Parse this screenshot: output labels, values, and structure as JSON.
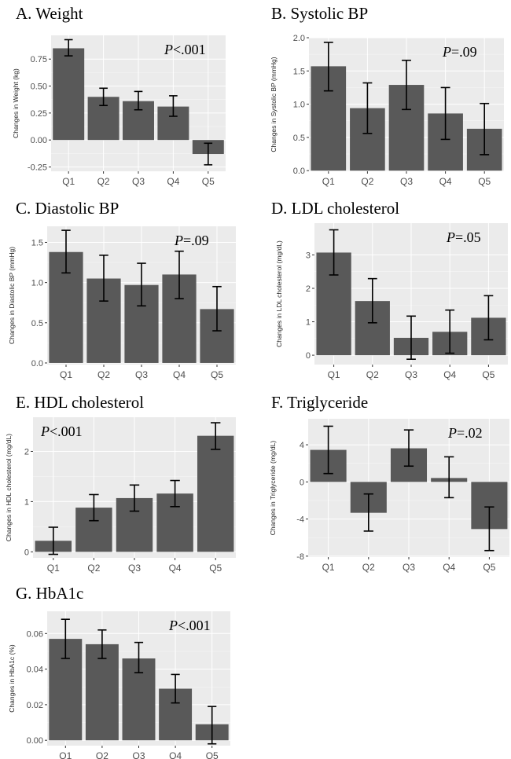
{
  "colors": {
    "bar": "#595959",
    "panel_bg": "#ebebeb",
    "grid": "#ffffff",
    "error_bar": "#000000"
  },
  "chart_data": [
    {
      "id": "A",
      "type": "bar",
      "title": "A. Weight",
      "ylabel": "Changes in Weight (kg)",
      "p_prefix": "P",
      "p_suffix": "<.001",
      "p_position": "top-right",
      "categories": [
        "Q1",
        "Q2",
        "Q3",
        "Q4",
        "Q5"
      ],
      "values": [
        0.85,
        0.4,
        0.36,
        0.31,
        -0.13
      ],
      "err_low": [
        0.78,
        0.32,
        0.28,
        0.22,
        -0.23
      ],
      "err_high": [
        0.93,
        0.48,
        0.45,
        0.41,
        -0.03
      ],
      "yticks": [
        -0.25,
        0.0,
        0.25,
        0.5,
        0.75
      ],
      "ytick_labels": [
        "-0.25",
        "0.00",
        "0.25",
        "0.50",
        "0.75"
      ],
      "ylim": [
        -0.29,
        0.97
      ]
    },
    {
      "id": "B",
      "type": "bar",
      "title": "B. Systolic BP",
      "ylabel": "Changes in Systolic BP (mmHg)",
      "p_prefix": "P",
      "p_suffix": "=.09",
      "p_position": "top-right",
      "categories": [
        "Q1",
        "Q2",
        "Q3",
        "Q4",
        "Q5"
      ],
      "values": [
        1.57,
        0.94,
        1.29,
        0.86,
        0.63
      ],
      "err_low": [
        1.2,
        0.56,
        0.92,
        0.47,
        0.24
      ],
      "err_high": [
        1.93,
        1.32,
        1.66,
        1.25,
        1.01
      ],
      "yticks": [
        0.0,
        0.5,
        1.0,
        1.5,
        2.0
      ],
      "ytick_labels": [
        "0.0",
        "0.5",
        "1.0",
        "1.5",
        "2.0"
      ],
      "ylim": [
        -0.01,
        2.0
      ]
    },
    {
      "id": "C",
      "type": "bar",
      "title": "C. Diastolic BP",
      "ylabel": "Changes in Diastolic BP (mmHg)",
      "p_prefix": "P",
      "p_suffix": "=.09",
      "p_position": "top-right",
      "categories": [
        "Q1",
        "Q2",
        "Q3",
        "Q4",
        "Q5"
      ],
      "values": [
        1.38,
        1.05,
        0.97,
        1.1,
        0.67
      ],
      "err_low": [
        1.12,
        0.77,
        0.71,
        0.8,
        0.4
      ],
      "err_high": [
        1.65,
        1.34,
        1.24,
        1.39,
        0.95
      ],
      "yticks": [
        0.0,
        0.5,
        1.0,
        1.5
      ],
      "ytick_labels": [
        "0.0",
        "0.5",
        "1.0",
        "1.5"
      ],
      "ylim": [
        -0.02,
        1.7
      ]
    },
    {
      "id": "D",
      "type": "bar",
      "title": "D. LDL cholesterol",
      "ylabel": "Changes in LDL cholesterol (mg/dL)",
      "p_prefix": "P",
      "p_suffix": "=.05",
      "p_position": "top-right",
      "categories": [
        "Q1",
        "Q2",
        "Q3",
        "Q4",
        "Q5"
      ],
      "values": [
        3.07,
        1.62,
        0.52,
        0.7,
        1.12
      ],
      "err_low": [
        2.4,
        0.97,
        -0.12,
        0.06,
        0.46
      ],
      "err_high": [
        3.75,
        2.29,
        1.17,
        1.35,
        1.78
      ],
      "yticks": [
        0,
        1,
        2,
        3
      ],
      "ytick_labels": [
        "0",
        "1",
        "2",
        "3"
      ],
      "ylim": [
        -0.28,
        3.95
      ]
    },
    {
      "id": "E",
      "type": "bar",
      "title": "E. HDL cholesterol",
      "ylabel": "Changes in HDL cholesterol (mg/dL)",
      "p_prefix": "P",
      "p_suffix": "<.001",
      "p_position": "top-left",
      "categories": [
        "Q1",
        "Q2",
        "Q3",
        "Q4",
        "Q5"
      ],
      "values": [
        0.22,
        0.88,
        1.07,
        1.16,
        2.31
      ],
      "err_low": [
        -0.05,
        0.62,
        0.81,
        0.9,
        2.04
      ],
      "err_high": [
        0.49,
        1.14,
        1.33,
        1.42,
        2.57
      ],
      "yticks": [
        0,
        1,
        2
      ],
      "ytick_labels": [
        "0",
        "1",
        "2"
      ],
      "ylim": [
        -0.12,
        2.68
      ]
    },
    {
      "id": "F",
      "type": "bar",
      "title": "F. Triglyceride",
      "ylabel": "Changes in Triglyceride (mg/dL)",
      "p_prefix": "P",
      "p_suffix": "=.02",
      "p_position": "top-right",
      "categories": [
        "Q1",
        "Q2",
        "Q3",
        "Q4",
        "Q5"
      ],
      "values": [
        3.45,
        -3.33,
        3.62,
        0.42,
        -5.08
      ],
      "err_low": [
        0.9,
        -5.3,
        1.7,
        -1.7,
        -7.4
      ],
      "err_high": [
        6.0,
        -1.3,
        5.6,
        2.7,
        -2.7
      ],
      "yticks": [
        -8,
        -4,
        0,
        4
      ],
      "ytick_labels": [
        "-8",
        "-4",
        "0",
        "4"
      ],
      "ylim": [
        -8.1,
        6.8
      ]
    },
    {
      "id": "G",
      "type": "bar",
      "title": "G. HbA1c",
      "ylabel": "Changes in HbA1c (%)",
      "p_prefix": "P",
      "p_suffix": "<.001",
      "p_position": "top-right",
      "categories": [
        "Q1",
        "Q2",
        "Q3",
        "Q4",
        "Q5"
      ],
      "values": [
        0.057,
        0.054,
        0.046,
        0.029,
        0.009
      ],
      "err_low": [
        0.046,
        0.046,
        0.038,
        0.021,
        -0.002
      ],
      "err_high": [
        0.068,
        0.062,
        0.055,
        0.037,
        0.019
      ],
      "yticks": [
        0.0,
        0.02,
        0.04,
        0.06
      ],
      "ytick_labels": [
        "0.00",
        "0.02",
        "0.04",
        "0.06"
      ],
      "ylim": [
        -0.003,
        0.0725
      ]
    }
  ]
}
